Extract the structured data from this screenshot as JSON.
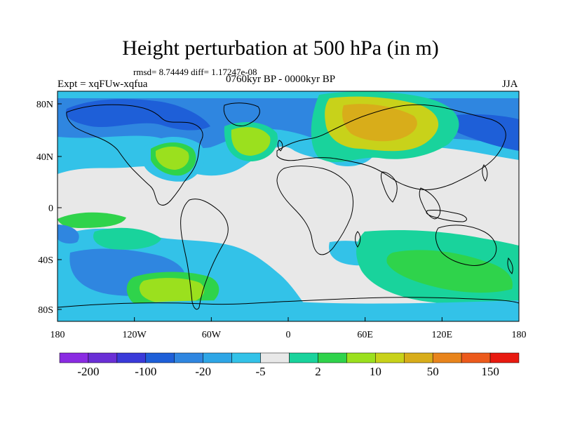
{
  "title": "Height perturbation at 500 hPa (in m)",
  "stats": "rmsd= 8.74449 diff= 1.17247e-08",
  "experiment": "Expt = xqFUw-xqfua",
  "period": "0760kyr BP - 0000kyr BP",
  "season": "JJA",
  "lat_ticks": [
    "80N",
    "40N",
    "0",
    "40S",
    "80S"
  ],
  "lon_ticks": [
    "180",
    "120W",
    "60W",
    "0",
    "60E",
    "120E",
    "180"
  ],
  "colorbar": {
    "labels": [
      "-200",
      "-100",
      "-20",
      "-5",
      "2",
      "10",
      "50",
      "150"
    ],
    "colors": [
      "#8a2be2",
      "#6a2fd6",
      "#3a3ad9",
      "#1e5fd8",
      "#2f86e0",
      "#2ea6e6",
      "#33c2e8",
      "#e8e8e8",
      "#19d39c",
      "#2fd34b",
      "#9be01e",
      "#c8d21a",
      "#d8ad1a",
      "#e8841c",
      "#ec5a1c",
      "#e81a10"
    ]
  },
  "map_colors": {
    "ocean": "#e8e8e8",
    "light_blue": "#33c2e8",
    "mid_blue": "#2f86e0",
    "dark_blue": "#1e5fd8",
    "teal": "#19d39c",
    "green": "#2fd34b",
    "yellow_green": "#9be01e",
    "olive": "#c8d21a",
    "orange": "#d8ad1a",
    "coast": "#000000",
    "frame": "#000000"
  }
}
